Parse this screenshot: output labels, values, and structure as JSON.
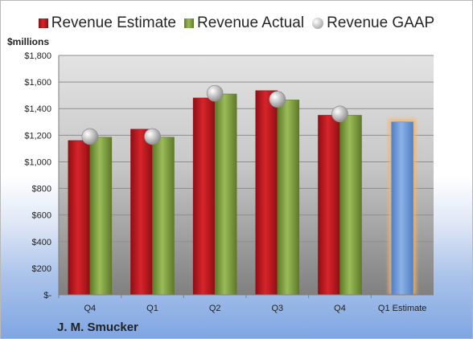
{
  "legend": {
    "estimate": "Revenue Estimate",
    "actual": "Revenue Actual",
    "gaap": "Revenue GAAP"
  },
  "units_label": "$millions",
  "company": "J. M. Smucker",
  "colors": {
    "estimate": "#d8242b",
    "actual": "#9bbb59",
    "gaap": "#c8c8c8",
    "future_estimate": "#7ea6de",
    "future_highlight": "#f6b46b"
  },
  "chart_data": {
    "type": "bar",
    "categories": [
      "Q4",
      "Q1",
      "Q2",
      "Q3",
      "Q4",
      "Q1 Estimate"
    ],
    "series": [
      {
        "name": "Revenue Estimate",
        "values": [
          1160,
          1245,
          1480,
          1535,
          1350,
          1300
        ]
      },
      {
        "name": "Revenue Actual",
        "values": [
          1185,
          1185,
          1510,
          1465,
          1350,
          null
        ]
      },
      {
        "name": "Revenue GAAP",
        "values": [
          1190,
          1190,
          1515,
          1470,
          1360,
          null
        ]
      }
    ],
    "y_ticks": [
      "$-",
      "$200",
      "$400",
      "$600",
      "$800",
      "$1,000",
      "$1,200",
      "$1,400",
      "$1,600",
      "$1,800"
    ],
    "ylim": [
      0,
      1800
    ],
    "grid": true,
    "legend_position": "top"
  }
}
